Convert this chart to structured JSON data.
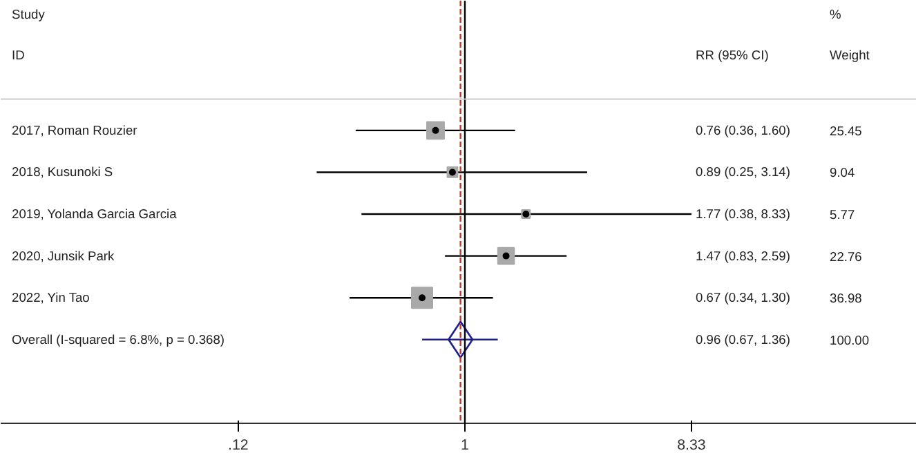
{
  "chart_data": {
    "type": "scatter",
    "orientation": "horizontal",
    "log": "x",
    "categories": [
      "2017, Roman Rouzier",
      "2018, Kusunoki S",
      "2019, Yolanda Garcia Garcia",
      "2020, Junsik Park",
      "2022, Yin Tao",
      "Overall  (I-squared = 6.8%, p = 0.368)"
    ],
    "series": [
      {
        "type": "bubble",
        "marker": "square",
        "color": "#a9a9a9",
        "values": [
          0.76,
          0.89,
          1.77,
          1.47,
          0.67,
          null
        ],
        "errors": [
          [
            0.36,
            1.6
          ],
          [
            0.25,
            3.14
          ],
          [
            0.38,
            8.33
          ],
          [
            0.83,
            2.59
          ],
          [
            0.34,
            1.3
          ],
          null
        ],
        "sizes": [
          0.688,
          0.244,
          0.156,
          0.615,
          1,
          null
        ]
      },
      {
        "marker": "diamond",
        "color": "#1f1f8f",
        "values": [
          null,
          null,
          null,
          null,
          null,
          0.96
        ],
        "errors": [
          null,
          null,
          null,
          null,
          null,
          [
            0.67,
            1.36
          ]
        ]
      }
    ],
    "xlim": [
      0.013,
      68.5
    ],
    "xticks": [
      {
        "value": 0.12,
        "label": ".12"
      },
      1,
      8.33
    ],
    "ref_lines": [
      {
        "axis": "x",
        "value": 1,
        "color": "#000000",
        "line_style": "solid"
      },
      {
        "axis": "x",
        "value": 0.96,
        "color": "#c0392b",
        "line_style": "dashed"
      }
    ],
    "annotations": [
      "Study",
      "ID",
      "RR (95% CI)",
      "%",
      "Weight",
      "0.76 (0.36, 1.60)",
      "25.45",
      "0.89 (0.25, 3.14)",
      "9.04",
      "1.77 (0.38, 8.33)",
      "5.77",
      "1.47 (0.83, 2.59)",
      "22.76",
      "0.67 (0.34, 1.30)",
      "36.98",
      "0.96 (0.67, 1.36)",
      "100.00"
    ],
    "grid": false
  }
}
